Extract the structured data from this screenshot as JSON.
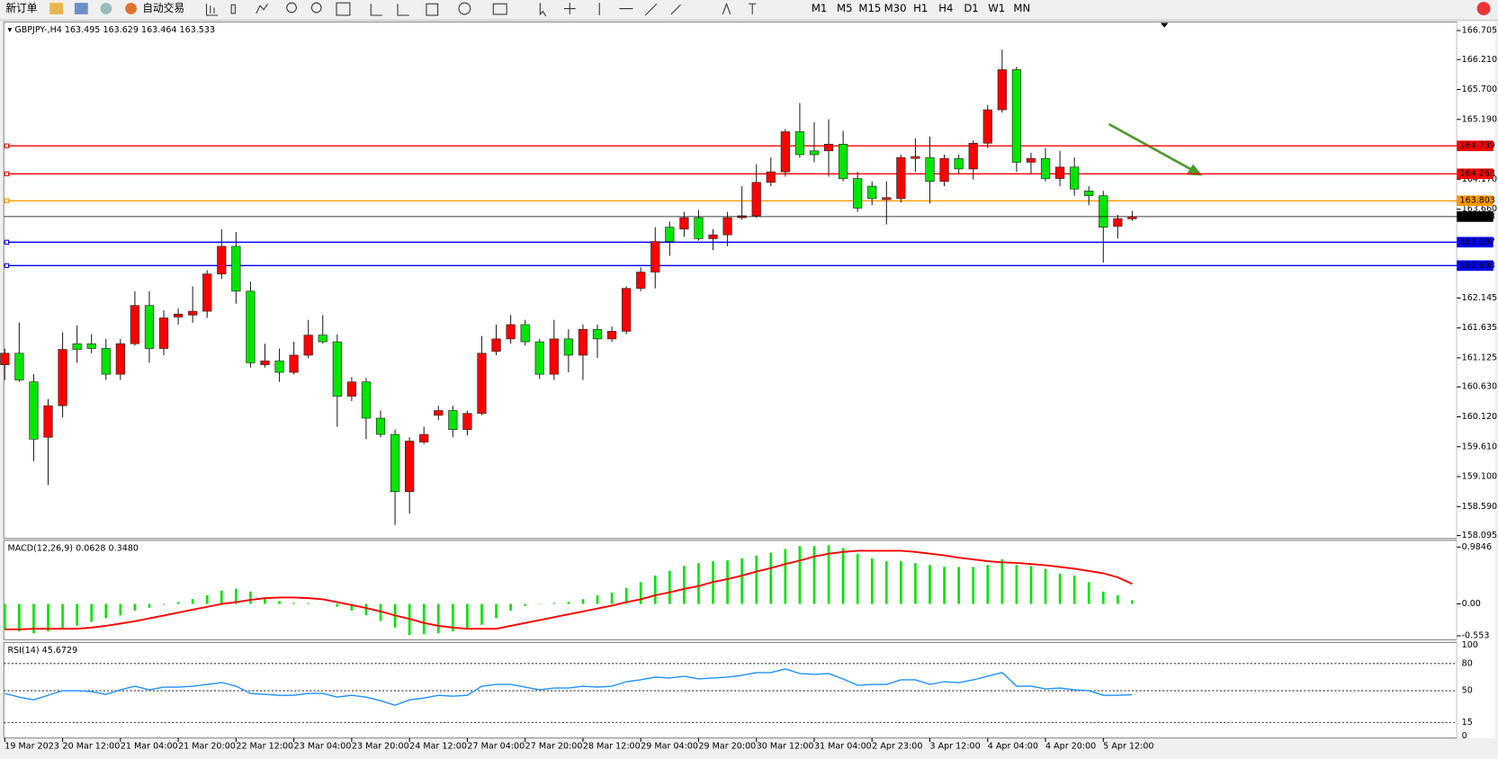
{
  "toolbar": {
    "new_order": "新订单",
    "auto_trading": "自动交易",
    "timeframes": [
      "M1",
      "M5",
      "M15",
      "M30",
      "H1",
      "H4",
      "D1",
      "W1",
      "MN"
    ]
  },
  "chart": {
    "symbol": "GBPJPY-,H4",
    "up_color": "#ff0000",
    "down_color": "#00e600",
    "candles": [
      [
        161.008,
        161.285,
        160.748,
        161.204
      ],
      [
        161.204,
        161.725,
        160.715,
        160.748
      ],
      [
        160.715,
        160.846,
        159.365,
        159.739
      ],
      [
        159.771,
        160.422,
        158.958,
        160.309
      ],
      [
        160.309,
        161.562,
        160.113,
        161.269
      ],
      [
        161.366,
        161.676,
        161.041,
        161.269
      ],
      [
        161.366,
        161.529,
        161.204,
        161.285
      ],
      [
        161.285,
        161.448,
        160.748,
        160.846
      ],
      [
        160.846,
        161.448,
        160.748,
        161.366
      ],
      [
        161.366,
        162.262,
        161.334,
        162.018
      ],
      [
        162.018,
        162.262,
        161.041,
        161.285
      ],
      [
        161.285,
        161.936,
        161.171,
        161.806
      ],
      [
        161.822,
        161.969,
        161.692,
        161.871
      ],
      [
        161.855,
        162.343,
        161.725,
        161.92
      ],
      [
        161.92,
        162.62,
        161.806,
        162.555
      ],
      [
        162.555,
        163.32,
        162.473,
        163.027
      ],
      [
        163.027,
        163.271,
        162.05,
        162.262
      ],
      [
        162.262,
        162.424,
        160.96,
        161.041
      ],
      [
        161.008,
        161.366,
        160.96,
        161.074
      ],
      [
        161.074,
        161.285,
        160.715,
        160.878
      ],
      [
        160.878,
        161.399,
        160.846,
        161.171
      ],
      [
        161.171,
        161.773,
        161.122,
        161.513
      ],
      [
        161.513,
        161.855,
        161.366,
        161.399
      ],
      [
        161.399,
        161.529,
        159.95,
        160.471
      ],
      [
        160.471,
        160.797,
        160.39,
        160.715
      ],
      [
        160.715,
        160.781,
        159.739,
        160.097
      ],
      [
        160.097,
        160.227,
        159.771,
        159.82
      ],
      [
        159.82,
        159.902,
        158.274,
        158.844
      ],
      [
        158.844,
        159.771,
        158.469,
        159.706
      ],
      [
        159.69,
        159.95,
        159.657,
        159.82
      ],
      [
        160.146,
        160.309,
        160.064,
        160.227
      ],
      [
        160.227,
        160.309,
        159.771,
        159.902
      ],
      [
        159.902,
        160.227,
        159.804,
        160.178
      ],
      [
        160.178,
        161.497,
        160.146,
        161.204
      ],
      [
        161.236,
        161.692,
        161.171,
        161.448
      ],
      [
        161.448,
        161.855,
        161.366,
        161.692
      ],
      [
        161.692,
        161.773,
        161.334,
        161.399
      ],
      [
        161.399,
        161.448,
        160.764,
        160.846
      ],
      [
        160.846,
        161.773,
        160.748,
        161.448
      ],
      [
        161.448,
        161.611,
        160.878,
        161.171
      ],
      [
        161.171,
        161.692,
        160.748,
        161.611
      ],
      [
        161.611,
        161.692,
        161.122,
        161.448
      ],
      [
        161.448,
        161.659,
        161.399,
        161.578
      ],
      [
        161.578,
        162.343,
        161.529,
        162.31
      ],
      [
        162.31,
        162.669,
        162.262,
        162.587
      ],
      [
        162.587,
        163.352,
        162.31,
        163.108
      ],
      [
        163.352,
        163.45,
        162.864,
        163.108
      ],
      [
        163.32,
        163.613,
        163.189,
        163.515
      ],
      [
        163.515,
        163.645,
        163.124,
        163.157
      ],
      [
        163.157,
        163.32,
        162.962,
        163.222
      ],
      [
        163.222,
        163.613,
        163.027,
        163.515
      ],
      [
        163.515,
        164.052,
        163.482,
        163.547
      ],
      [
        163.547,
        164.426,
        163.515,
        164.117
      ],
      [
        164.117,
        164.54,
        164.052,
        164.296
      ],
      [
        164.296,
        165.029,
        164.215,
        164.98
      ],
      [
        164.98,
        165.468,
        164.54,
        164.589
      ],
      [
        164.654,
        165.143,
        164.459,
        164.589
      ],
      [
        164.654,
        165.191,
        164.215,
        164.768
      ],
      [
        164.768,
        164.996,
        164.133,
        164.182
      ],
      [
        164.182,
        164.296,
        163.613,
        163.678
      ],
      [
        164.052,
        164.133,
        163.726,
        163.84
      ],
      [
        163.824,
        164.133,
        163.401,
        163.857
      ],
      [
        163.84,
        164.589,
        163.775,
        164.54
      ],
      [
        164.524,
        164.866,
        164.296,
        164.557
      ],
      [
        164.54,
        164.898,
        163.759,
        164.133
      ],
      [
        164.133,
        164.589,
        164.052,
        164.524
      ],
      [
        164.524,
        164.589,
        164.264,
        164.345
      ],
      [
        164.345,
        164.833,
        164.166,
        164.784
      ],
      [
        164.784,
        165.435,
        164.703,
        165.354
      ],
      [
        165.354,
        166.379,
        165.305,
        166.038
      ],
      [
        166.038,
        166.087,
        164.296,
        164.459
      ],
      [
        164.459,
        164.622,
        164.264,
        164.524
      ],
      [
        164.524,
        164.703,
        164.133,
        164.182
      ],
      [
        164.182,
        164.654,
        164.052,
        164.378
      ],
      [
        164.378,
        164.54,
        163.889,
        164.003
      ],
      [
        163.971,
        164.052,
        163.726,
        163.889
      ],
      [
        163.889,
        163.971,
        162.75,
        163.352
      ],
      [
        163.368,
        163.564,
        163.157,
        163.499
      ],
      [
        163.495,
        163.629,
        163.464,
        163.533
      ]
    ],
    "price_ticks": [
      {
        "value": 166.705,
        "label": "166.705"
      },
      {
        "value": 166.21,
        "label": "166.210"
      },
      {
        "value": 165.7,
        "label": "165.700"
      },
      {
        "value": 165.19,
        "label": "165.190"
      },
      {
        "value": 164.17,
        "label": "164.170"
      },
      {
        "value": 163.66,
        "label": "163.660"
      },
      162.145,
      161.635,
      161.125,
      {
        "value": 160.63,
        "label": "160.630"
      },
      {
        "value": 160.12,
        "label": "160.120"
      },
      {
        "value": 159.61,
        "label": "159.610"
      },
      {
        "value": 159.1,
        "label": "159.100"
      },
      {
        "value": 158.59,
        "label": "158.590"
      },
      158.095
    ],
    "lines": [
      {
        "value": 164.739,
        "color": "#ff0000"
      },
      {
        "value": 164.263,
        "color": "#ff0000"
      },
      {
        "value": 163.803,
        "color": "#ff9900"
      },
      {
        "value": 163.097,
        "color": "#0000ff"
      },
      {
        "value": 162.698,
        "color": "#0000ff"
      }
    ],
    "time_labels": [
      "19 Mar 2023",
      "20 Mar 12:00",
      "21 Mar 04:00",
      "21 Mar 20:00",
      "22 Mar 12:00",
      "23 Mar 04:00",
      "23 Mar 20:00",
      "24 Mar 12:00",
      "27 Mar 04:00",
      "27 Mar 20:00",
      "28 Mar 12:00",
      "29 Mar 04:00",
      "29 Mar 20:00",
      "30 Mar 12:00",
      "31 Mar 04:00",
      "2 Apr 23:00",
      "3 Apr 12:00",
      "4 Apr 04:00",
      "4 Apr 20:00",
      "5 Apr 12:00"
    ]
  },
  "macd": {
    "title": "MACD(12,26,9)",
    "hist_color": "#00e600",
    "signal_color": "#ff0000",
    "histogram": [
      -0.443,
      -0.476,
      -0.509,
      -0.476,
      -0.443,
      -0.377,
      -0.312,
      -0.246,
      -0.197,
      -0.115,
      -0.066,
      -0.016,
      0.033,
      0.082,
      0.148,
      0.23,
      0.263,
      0.213,
      0.098,
      0.049,
      0.016,
      0.016,
      0.005,
      -0.049,
      -0.115,
      -0.197,
      -0.295,
      -0.41,
      -0.542,
      -0.525,
      -0.509,
      -0.476,
      -0.443,
      -0.361,
      -0.246,
      -0.115,
      -0.033,
      -0.005,
      0.016,
      0.033,
      0.082,
      0.148,
      0.197,
      0.279,
      0.377,
      0.492,
      0.574,
      0.656,
      0.705,
      0.738,
      0.755,
      0.788,
      0.837,
      0.886,
      0.952,
      1.001,
      1.001,
      1.017,
      0.968,
      0.87,
      0.788,
      0.738,
      0.738,
      0.705,
      0.673,
      0.64,
      0.64,
      0.64,
      0.673,
      0.771,
      0.673,
      0.656,
      0.607,
      0.525,
      0.492,
      0.377,
      0.213,
      0.148,
      0.0628
    ],
    "signal": [
      -0.44,
      -0.44,
      -0.43,
      -0.43,
      -0.43,
      -0.43,
      -0.41,
      -0.38,
      -0.34,
      -0.3,
      -0.25,
      -0.2,
      -0.15,
      -0.1,
      -0.05,
      0,
      0.03,
      0.07,
      0.1,
      0.11,
      0.11,
      0.1,
      0.08,
      0.03,
      -0.02,
      -0.07,
      -0.13,
      -0.2,
      -0.26,
      -0.33,
      -0.38,
      -0.41,
      -0.43,
      -0.43,
      -0.43,
      -0.38,
      -0.33,
      -0.28,
      -0.23,
      -0.18,
      -0.13,
      -0.08,
      -0.03,
      0.03,
      0.08,
      0.15,
      0.2,
      0.26,
      0.31,
      0.38,
      0.43,
      0.49,
      0.56,
      0.62,
      0.69,
      0.75,
      0.82,
      0.87,
      0.9,
      0.92,
      0.92,
      0.92,
      0.92,
      0.9,
      0.87,
      0.84,
      0.8,
      0.77,
      0.74,
      0.72,
      0.71,
      0.69,
      0.67,
      0.64,
      0.61,
      0.57,
      0.53,
      0.46,
      0.348
    ],
    "signal_readout": "0.3480",
    "ticks": [
      0.9846,
      {
        "value": 0,
        "label": "0.00"
      },
      -0.553
    ]
  },
  "rsi": {
    "title": "RSI(14)",
    "color": "#1e90ff",
    "values": [
      47,
      43,
      40,
      45,
      50,
      50,
      49,
      46,
      51,
      55,
      51,
      54,
      54,
      55,
      57,
      59,
      55,
      47,
      46,
      45,
      45,
      47,
      47,
      43,
      45,
      43,
      39,
      34,
      40,
      42,
      45,
      44,
      45,
      55,
      57,
      57,
      54,
      51,
      53,
      53,
      55,
      54,
      55,
      60,
      62,
      65,
      64,
      66,
      63,
      64,
      65,
      67,
      70,
      70,
      74,
      69,
      68,
      69,
      63,
      56,
      57,
      57,
      62,
      62,
      57,
      60,
      59,
      62,
      66,
      70,
      55,
      55,
      52,
      53,
      51,
      50,
      45,
      45,
      45.6729
    ],
    "ticks": [
      100,
      80,
      50,
      15,
      0
    ]
  }
}
